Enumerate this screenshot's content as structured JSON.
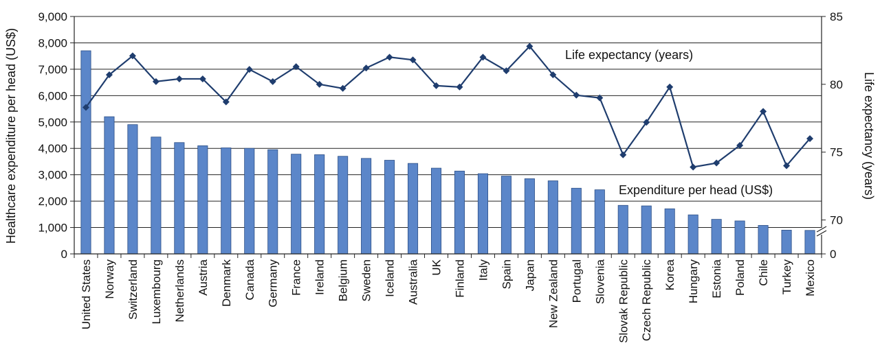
{
  "chart_data": {
    "type": "bar",
    "categories": [
      "United States",
      "Norway",
      "Switzerland",
      "Luxembourg",
      "Netherlands",
      "Austria",
      "Denmark",
      "Canada",
      "Germany",
      "France",
      "Ireland",
      "Belgium",
      "Sweden",
      "Iceland",
      "Australia",
      "UK",
      "Finland",
      "Italy",
      "Spain",
      "Japan",
      "New Zealand",
      "Portugal",
      "Slovenia",
      "Slovak Republic",
      "Czech Republic",
      "Korea",
      "Hungary",
      "Estonia",
      "Poland",
      "Chile",
      "Turkey",
      "Mexico"
    ],
    "series": [
      {
        "name": "Expenditure per head (US$)",
        "type": "bar",
        "axis": "left",
        "color": "#5b86c9",
        "values": [
          7700,
          5200,
          4900,
          4430,
          4220,
          4100,
          4020,
          4000,
          3950,
          3780,
          3760,
          3700,
          3620,
          3550,
          3430,
          3250,
          3140,
          3040,
          2950,
          2850,
          2770,
          2490,
          2430,
          1840,
          1820,
          1710,
          1480,
          1310,
          1250,
          1080,
          900,
          890
        ]
      },
      {
        "name": "Life expectancy (years)",
        "type": "line",
        "axis": "right",
        "color": "#1f3d6e",
        "marker": "diamond",
        "values": [
          78.3,
          80.7,
          82.1,
          80.2,
          80.4,
          80.4,
          78.7,
          81.1,
          80.2,
          81.3,
          80.0,
          79.7,
          81.2,
          82.0,
          81.8,
          79.9,
          79.8,
          82.0,
          81.0,
          82.8,
          80.7,
          79.2,
          79.0,
          74.8,
          77.2,
          79.8,
          73.9,
          74.2,
          75.5,
          78.0,
          74.0,
          76.0
        ]
      }
    ],
    "ylabel": "Healthcare expenditure per head (US$)",
    "y2label": "Life expectancy (years)",
    "ylim": [
      0,
      9000
    ],
    "yticks": [
      "0",
      "1,000",
      "2,000",
      "3,000",
      "4,000",
      "5,000",
      "6,000",
      "7,000",
      "8,000",
      "9,000"
    ],
    "y2lim": [
      65,
      85
    ],
    "y2ticks": [
      "0",
      "70",
      "75",
      "80",
      "85"
    ],
    "y2_axis_break": true,
    "grid": true,
    "annotations": [
      "Life expectancy (years)",
      "Expenditure per head (US$)"
    ]
  }
}
